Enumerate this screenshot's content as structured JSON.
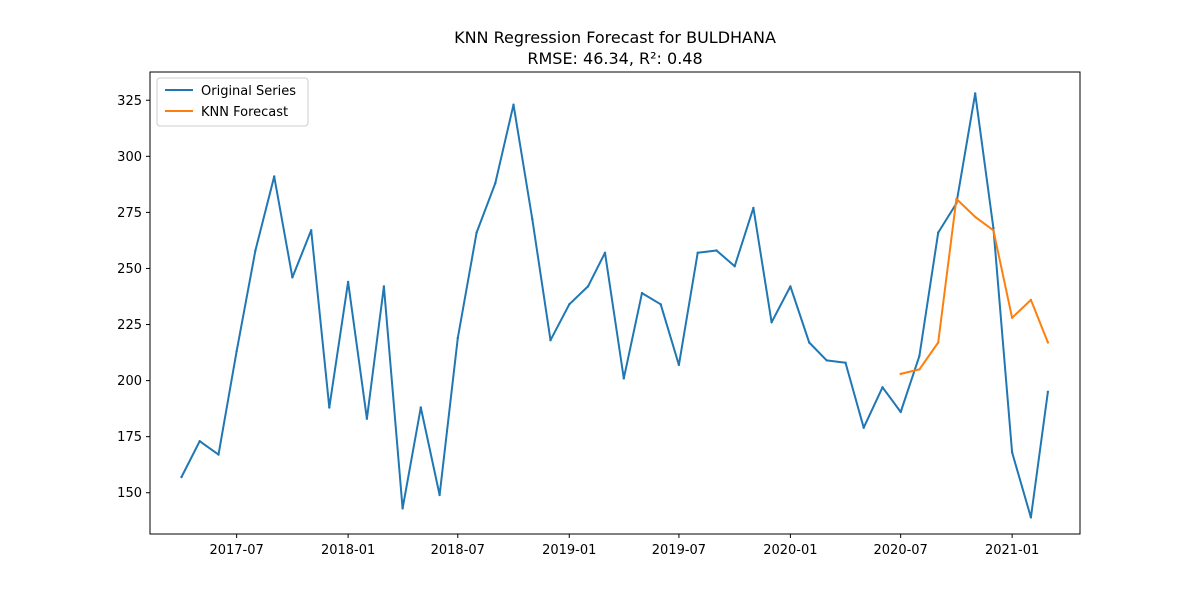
{
  "chart_data": {
    "type": "line",
    "title": "KNN Regression Forecast for BULDHANA",
    "subtitle": "RMSE: 46.34, R²: 0.48",
    "xlabel": "",
    "ylabel": "",
    "xlim": [
      "2017-02-08",
      "2021-04-23"
    ],
    "ylim": [
      131.6,
      337.6
    ],
    "x_ticks": [
      "2017-07",
      "2018-01",
      "2018-07",
      "2019-01",
      "2019-07",
      "2020-01",
      "2020-07",
      "2021-01"
    ],
    "y_ticks": [
      150,
      175,
      200,
      225,
      250,
      275,
      300,
      325
    ],
    "grid": false,
    "legend": {
      "position": "upper left",
      "entries": [
        "Original Series",
        "KNN Forecast"
      ]
    },
    "series": [
      {
        "name": "Original Series",
        "color": "#1f77b4",
        "points": [
          [
            "2017-04",
            157
          ],
          [
            "2017-05",
            173
          ],
          [
            "2017-06",
            167
          ],
          [
            "2017-07",
            213
          ],
          [
            "2017-08",
            258
          ],
          [
            "2017-09",
            291
          ],
          [
            "2017-10",
            246
          ],
          [
            "2017-11",
            267
          ],
          [
            "2017-12",
            188
          ],
          [
            "2018-01",
            244
          ],
          [
            "2018-02",
            183
          ],
          [
            "2018-03",
            242
          ],
          [
            "2018-04",
            143
          ],
          [
            "2018-05",
            188
          ],
          [
            "2018-06",
            149
          ],
          [
            "2018-07",
            219
          ],
          [
            "2018-08",
            266
          ],
          [
            "2018-09",
            288
          ],
          [
            "2018-10",
            323
          ],
          [
            "2018-11",
            272
          ],
          [
            "2018-12",
            218
          ],
          [
            "2019-01",
            234
          ],
          [
            "2019-02",
            242
          ],
          [
            "2019-03",
            257
          ],
          [
            "2019-04",
            201
          ],
          [
            "2019-05",
            239
          ],
          [
            "2019-06",
            234
          ],
          [
            "2019-07",
            207
          ],
          [
            "2019-08",
            257
          ],
          [
            "2019-09",
            258
          ],
          [
            "2019-10",
            251
          ],
          [
            "2019-11",
            277
          ],
          [
            "2019-12",
            226
          ],
          [
            "2020-01",
            242
          ],
          [
            "2020-02",
            217
          ],
          [
            "2020-03",
            209
          ],
          [
            "2020-04",
            208
          ],
          [
            "2020-05",
            179
          ],
          [
            "2020-06",
            197
          ],
          [
            "2020-07",
            186
          ],
          [
            "2020-08",
            211
          ],
          [
            "2020-09",
            266
          ],
          [
            "2020-10",
            279
          ],
          [
            "2020-11",
            328
          ],
          [
            "2020-12",
            268
          ],
          [
            "2021-01",
            168
          ],
          [
            "2021-02",
            139
          ],
          [
            "2021-03",
            195
          ]
        ]
      },
      {
        "name": "KNN Forecast",
        "color": "#ff7f0e",
        "points": [
          [
            "2020-07",
            203
          ],
          [
            "2020-08",
            205
          ],
          [
            "2020-09",
            217
          ],
          [
            "2020-10",
            281
          ],
          [
            "2020-11",
            273
          ],
          [
            "2020-12",
            267
          ],
          [
            "2021-01",
            228
          ],
          [
            "2021-02",
            236
          ],
          [
            "2021-03",
            217
          ]
        ]
      }
    ]
  }
}
